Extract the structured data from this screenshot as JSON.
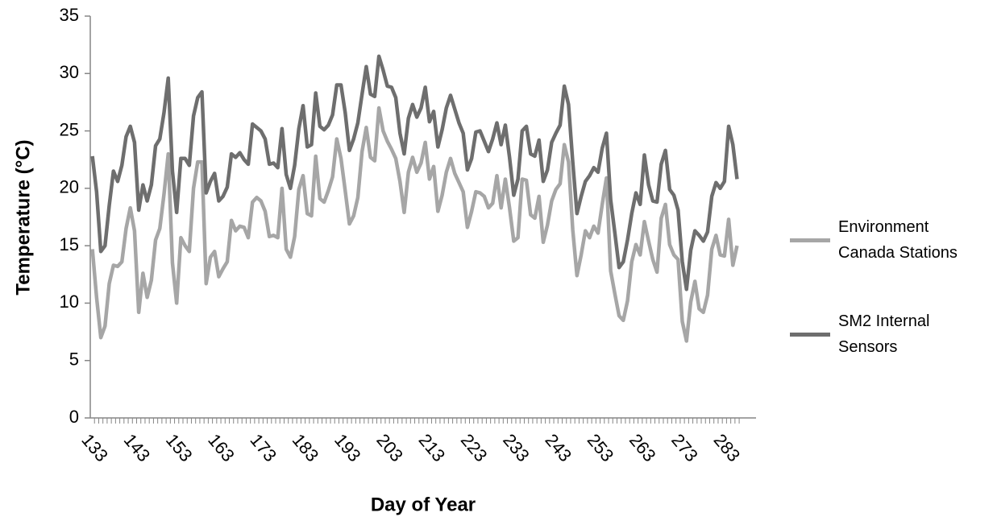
{
  "chart_data": {
    "type": "line",
    "x_label": "Day of Year",
    "y_label": "Temperature (°C)",
    "x": [
      133,
      134,
      135,
      136,
      137,
      138,
      139,
      140,
      141,
      142,
      143,
      144,
      145,
      146,
      147,
      148,
      149,
      150,
      151,
      152,
      153,
      154,
      155,
      156,
      157,
      158,
      159,
      160,
      161,
      162,
      163,
      164,
      165,
      166,
      167,
      168,
      169,
      170,
      171,
      172,
      173,
      174,
      175,
      176,
      177,
      178,
      179,
      180,
      181,
      182,
      183,
      184,
      185,
      186,
      187,
      188,
      189,
      190,
      191,
      192,
      193,
      194,
      195,
      196,
      197,
      198,
      199,
      200,
      201,
      202,
      203,
      204,
      205,
      206,
      207,
      208,
      209,
      210,
      211,
      212,
      213,
      214,
      215,
      216,
      217,
      218,
      219,
      220,
      221,
      222,
      223,
      224,
      225,
      226,
      227,
      228,
      229,
      230,
      231,
      232,
      233,
      234,
      235,
      236,
      237,
      238,
      239,
      240,
      241,
      242,
      243,
      244,
      245,
      246,
      247,
      248,
      249,
      250,
      251,
      252,
      253,
      254,
      255,
      256,
      257,
      258,
      259,
      260,
      261,
      262,
      263,
      264,
      265,
      266,
      267,
      268,
      269,
      270,
      271,
      272,
      273,
      274,
      275,
      276,
      277,
      278,
      279,
      280,
      281,
      282,
      283,
      284,
      285,
      286
    ],
    "series": [
      {
        "name": "Environment Canada Stations",
        "color": "#a6a6a6",
        "values": [
          14.7,
          10.5,
          7.0,
          8.0,
          11.7,
          13.3,
          13.2,
          13.6,
          16.5,
          18.3,
          16.3,
          9.2,
          12.6,
          10.5,
          12.0,
          15.5,
          16.5,
          19.5,
          23.0,
          13.5,
          10.0,
          15.7,
          15.0,
          14.5,
          20.0,
          22.3,
          22.3,
          11.7,
          14.0,
          14.5,
          12.3,
          13.0,
          13.6,
          17.2,
          16.3,
          16.7,
          16.6,
          15.7,
          18.8,
          19.2,
          18.9,
          18.0,
          15.8,
          15.9,
          15.7,
          20.0,
          14.7,
          14.0,
          15.8,
          19.9,
          21.1,
          17.8,
          17.6,
          22.8,
          19.1,
          18.8,
          19.8,
          21.0,
          24.3,
          22.6,
          19.8,
          16.9,
          17.6,
          19.2,
          23.2,
          25.3,
          22.7,
          22.4,
          27.0,
          25.0,
          24.1,
          23.4,
          22.6,
          20.6,
          17.9,
          21.4,
          22.7,
          21.4,
          22.2,
          24.0,
          20.8,
          21.9,
          18.0,
          19.4,
          21.4,
          22.6,
          21.3,
          20.5,
          19.7,
          16.6,
          18.0,
          19.7,
          19.6,
          19.3,
          18.3,
          18.7,
          21.1,
          18.3,
          20.8,
          18.3,
          15.4,
          15.7,
          20.8,
          20.7,
          17.7,
          17.4,
          19.3,
          15.3,
          16.8,
          18.9,
          19.9,
          20.4,
          23.8,
          22.3,
          16.4,
          12.4,
          14.2,
          16.3,
          15.7,
          16.7,
          16.1,
          18.6,
          20.9,
          12.8,
          10.8,
          8.9,
          8.5,
          10.2,
          13.6,
          15.1,
          14.2,
          17.1,
          15.4,
          13.8,
          12.7,
          17.4,
          18.6,
          15.1,
          14.2,
          13.8,
          8.4,
          6.7,
          10.1,
          11.9,
          9.5,
          9.2,
          10.7,
          14.7,
          15.9,
          14.2,
          14.1,
          17.3,
          13.3,
          15.0
        ]
      },
      {
        "name": "SM2 Internal Sensors",
        "color": "#6e6e6e",
        "values": [
          22.8,
          19.7,
          14.5,
          15.0,
          18.5,
          21.5,
          20.6,
          22.0,
          24.5,
          25.4,
          24.0,
          18.1,
          20.3,
          18.9,
          20.3,
          23.7,
          24.3,
          26.6,
          29.6,
          21.5,
          17.9,
          22.6,
          22.6,
          22.0,
          26.3,
          27.9,
          28.4,
          19.6,
          20.6,
          21.3,
          18.9,
          19.3,
          20.1,
          23.0,
          22.7,
          23.1,
          22.5,
          22.1,
          25.6,
          25.3,
          25.0,
          24.3,
          22.1,
          22.2,
          21.8,
          25.2,
          21.2,
          20.0,
          22.0,
          25.2,
          27.2,
          23.6,
          23.8,
          28.3,
          25.4,
          25.1,
          25.5,
          26.4,
          29.0,
          29.0,
          26.6,
          23.3,
          24.3,
          25.7,
          28.2,
          30.6,
          28.2,
          28.0,
          31.5,
          30.3,
          28.9,
          28.8,
          27.9,
          24.8,
          23.0,
          26.1,
          27.3,
          26.2,
          27.0,
          28.8,
          25.8,
          26.7,
          23.6,
          25.1,
          27.0,
          28.1,
          26.9,
          25.7,
          24.8,
          21.6,
          22.6,
          24.9,
          25.0,
          24.1,
          23.2,
          24.3,
          25.7,
          23.8,
          25.5,
          22.7,
          19.4,
          20.8,
          25.0,
          25.4,
          23.0,
          22.8,
          24.2,
          20.6,
          21.6,
          24.0,
          24.8,
          25.5,
          28.9,
          27.3,
          22.3,
          17.8,
          19.3,
          20.6,
          21.1,
          21.8,
          21.4,
          23.5,
          24.8,
          19.0,
          16.1,
          13.1,
          13.6,
          15.5,
          17.8,
          19.6,
          18.6,
          22.9,
          20.3,
          18.9,
          18.8,
          22.1,
          23.3,
          19.9,
          19.4,
          18.1,
          13.6,
          11.2,
          14.6,
          16.3,
          15.9,
          15.4,
          16.2,
          19.3,
          20.5,
          20.0,
          20.6,
          25.4,
          23.8,
          20.8
        ]
      }
    ],
    "xlim": [
      132.5,
      290.5
    ],
    "xticks": [
      133,
      143,
      153,
      163,
      173,
      183,
      193,
      203,
      213,
      223,
      233,
      243,
      253,
      263,
      273,
      283
    ],
    "ylim": [
      0,
      35
    ],
    "yticks": [
      0,
      5,
      10,
      15,
      20,
      25,
      30,
      35
    ],
    "legend": "right"
  }
}
